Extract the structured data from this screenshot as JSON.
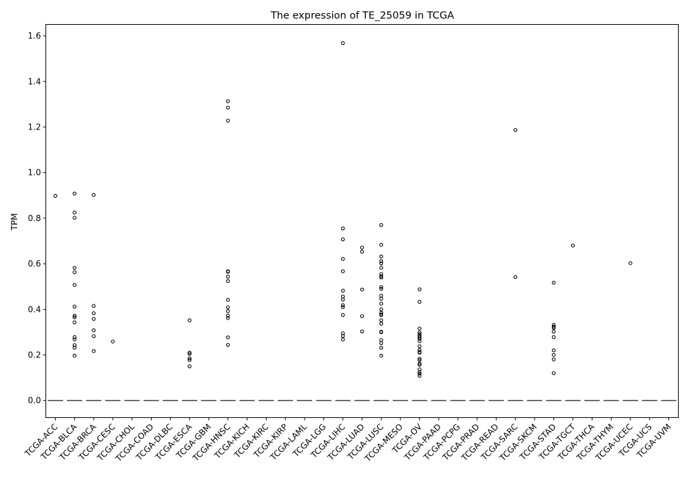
{
  "chart_data": {
    "type": "box",
    "title": "The expression of TE_25059 in TCGA",
    "xlabel": "",
    "ylabel": "TPM",
    "ylim": [
      -0.075,
      1.65
    ],
    "yticks": [
      0.0,
      0.2,
      0.4,
      0.6,
      0.8,
      1.0,
      1.2,
      1.4,
      1.6
    ],
    "ytick_labels": [
      "0.0",
      "0.2",
      "0.4",
      "0.6",
      "0.8",
      "1.0",
      "1.2",
      "1.4",
      "1.6"
    ],
    "grid": false,
    "categories": [
      "TCGA-ACC",
      "TCGA-BLCA",
      "TCGA-BRCA",
      "TCGA-CESC",
      "TCGA-CHOL",
      "TCGA-COAD",
      "TCGA-DLBC",
      "TCGA-ESCA",
      "TCGA-GBM",
      "TCGA-HNSC",
      "TCGA-KICH",
      "TCGA-KIRC",
      "TCGA-KIRP",
      "TCGA-LAML",
      "TCGA-LGG",
      "TCGA-LIHC",
      "TCGA-LUAD",
      "TCGA-LUSC",
      "TCGA-MESO",
      "TCGA-OV",
      "TCGA-PAAD",
      "TCGA-PCPG",
      "TCGA-PRAD",
      "TCGA-READ",
      "TCGA-SARC",
      "TCGA-SKCM",
      "TCGA-STAD",
      "TCGA-TGCT",
      "TCGA-THCA",
      "TCGA-THYM",
      "TCGA-UCEC",
      "TCGA-UCS",
      "TCGA-UVM"
    ],
    "medians": [
      0,
      0,
      0,
      0,
      0,
      0,
      0,
      0,
      0,
      0,
      0,
      0,
      0,
      0,
      0,
      0,
      0,
      0,
      0,
      0,
      0,
      0,
      0,
      0,
      0,
      0,
      0,
      0,
      0,
      0,
      0,
      0,
      0
    ],
    "outliers": [
      [
        0.898
      ],
      [
        0.908,
        0.825,
        0.802,
        0.582,
        0.563,
        0.507,
        0.412,
        0.372,
        0.365,
        0.343,
        0.278,
        0.268,
        0.243,
        0.232,
        0.197
      ],
      [
        0.902,
        0.415,
        0.383,
        0.358,
        0.308,
        0.282,
        0.217
      ],
      [
        0.259
      ],
      [],
      [],
      [],
      [
        0.352,
        0.21,
        0.205,
        0.185,
        0.178,
        0.15
      ],
      [],
      [
        1.313,
        1.285,
        1.228,
        0.567,
        0.565,
        0.543,
        0.524,
        0.442,
        0.409,
        0.392,
        0.372,
        0.362,
        0.277,
        0.244
      ],
      [],
      [],
      [],
      [],
      [],
      [
        1.568,
        0.755,
        0.707,
        0.621,
        0.567,
        0.482,
        0.456,
        0.443,
        0.418,
        0.41,
        0.375,
        0.295,
        0.283,
        0.268
      ],
      [
        0.671,
        0.653,
        0.487,
        0.37,
        0.303
      ],
      [
        0.77,
        0.683,
        0.632,
        0.612,
        0.602,
        0.583,
        0.555,
        0.545,
        0.54,
        0.498,
        0.49,
        0.46,
        0.446,
        0.425,
        0.4,
        0.385,
        0.377,
        0.375,
        0.352,
        0.337,
        0.302,
        0.3,
        0.265,
        0.252,
        0.232,
        0.197
      ],
      [],
      [
        0.488,
        0.433,
        0.316,
        0.298,
        0.29,
        0.283,
        0.277,
        0.271,
        0.26,
        0.238,
        0.222,
        0.213,
        0.21,
        0.183,
        0.177,
        0.162,
        0.157,
        0.137,
        0.125,
        0.118,
        0.108
      ],
      [],
      [],
      [],
      [],
      [
        1.187,
        0.542
      ],
      [],
      [
        0.517,
        0.332,
        0.324,
        0.318,
        0.302,
        0.278,
        0.22,
        0.2,
        0.18,
        0.12
      ],
      [
        0.68
      ],
      [],
      [],
      [
        0.603
      ],
      [],
      []
    ]
  }
}
